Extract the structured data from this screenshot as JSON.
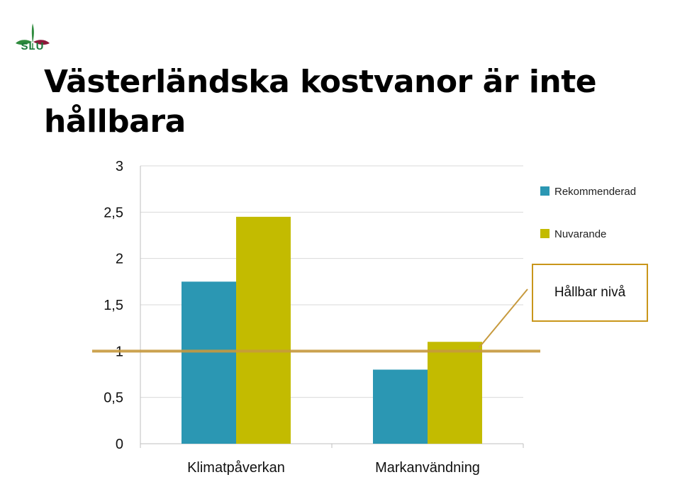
{
  "logo": {
    "text": "SLU",
    "colors": {
      "leaf_green": "#2e8b3d",
      "leaf_red": "#8b1a3a"
    }
  },
  "title": "Västerländska kostvanor är inte hållbara",
  "callout": {
    "text": "Hållbar nivå",
    "border_color": "#c9961a"
  },
  "colors": {
    "Rekommenderad": "#2b97b3",
    "Nuvarande": "#c3bb00",
    "threshold_line": "#c79a3e",
    "grid": "#d9d9d9",
    "axis": "#bfbfbf"
  },
  "chart_data": {
    "type": "bar",
    "categories": [
      "Klimatpåverkan",
      "Markanvändning"
    ],
    "series": [
      {
        "name": "Rekommenderad",
        "values": [
          1.75,
          0.8
        ]
      },
      {
        "name": "Nuvarande",
        "values": [
          2.45,
          1.1
        ]
      }
    ],
    "ylim": [
      0,
      3
    ],
    "yticks": [
      0,
      0.5,
      1,
      1.5,
      2,
      2.5,
      3
    ],
    "ytick_labels": [
      "0",
      "0,5",
      "1",
      "1,5",
      "2",
      "2,5",
      "3"
    ],
    "reference_line": {
      "value": 1
    },
    "grid": true,
    "legend_position": "right"
  }
}
